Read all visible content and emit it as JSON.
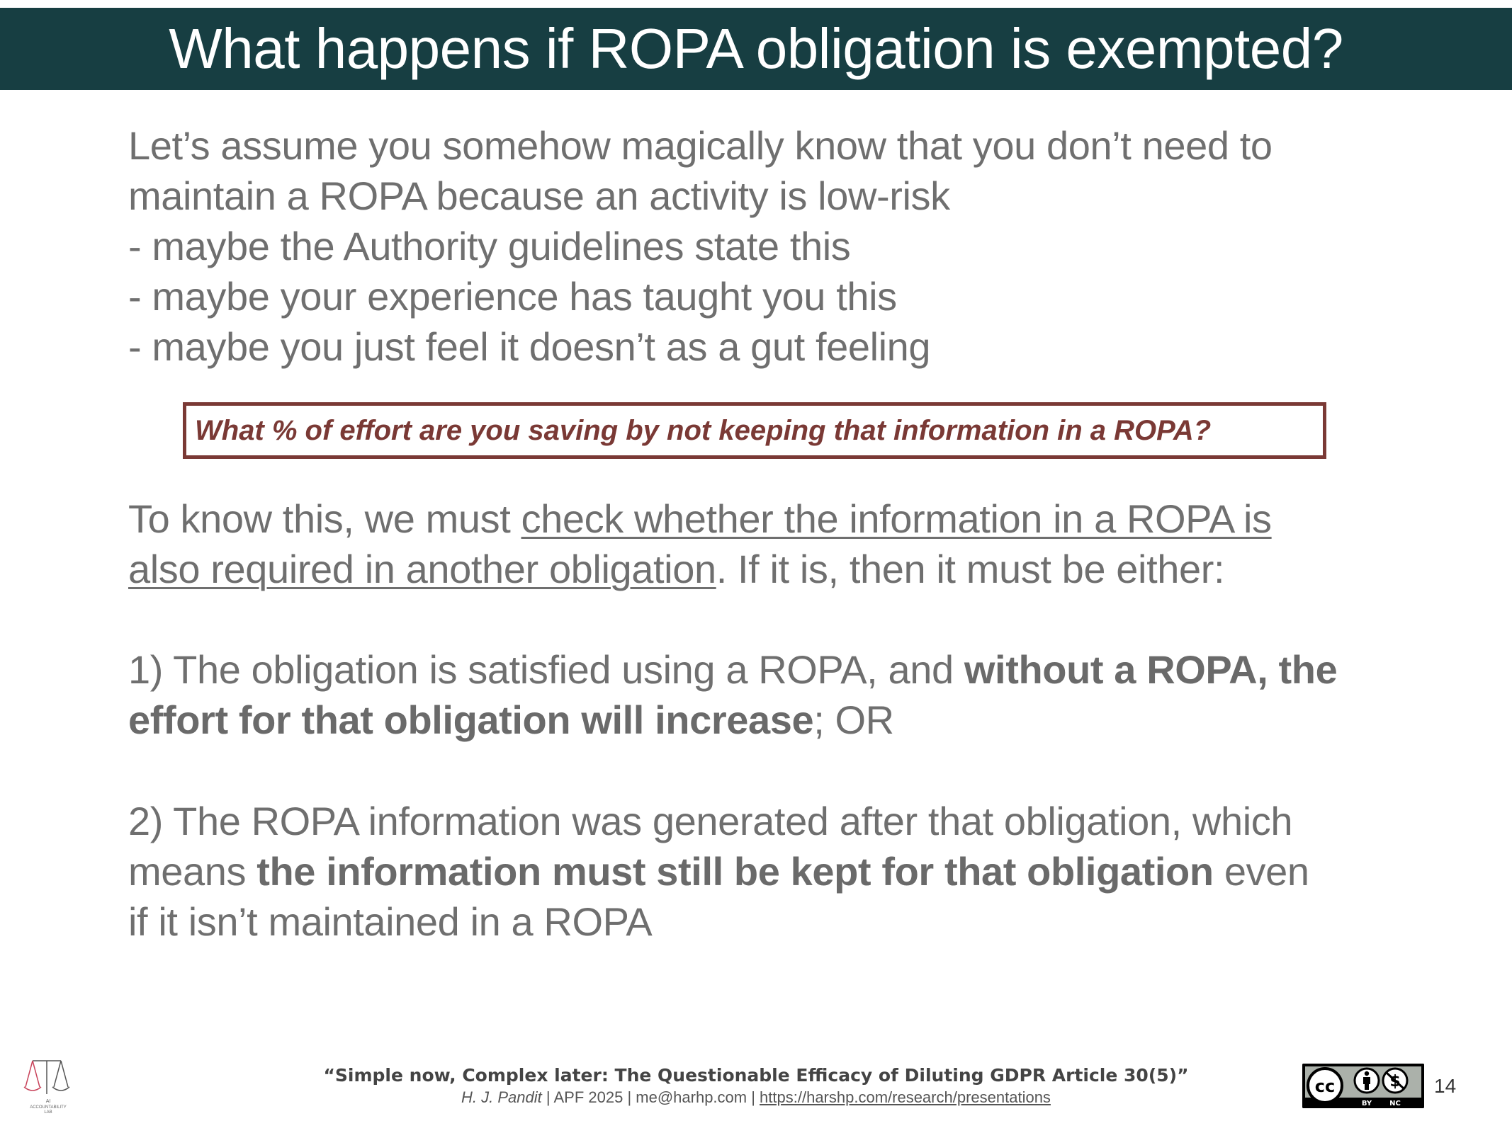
{
  "slide": {
    "title": "What happens if ROPA obligation is exempted?",
    "intro": {
      "line1": "Let’s assume you somehow magically know that you don’t need to",
      "line2": "maintain a ROPA because an activity is low-risk",
      "bullet1": "- maybe the Authority guidelines state this",
      "bullet2": "- maybe your experience has taught you this",
      "bullet3": "- maybe you just feel it doesn’t as a gut feeling"
    },
    "question": "What % of effort are you saving by not keeping that information in a ROPA?",
    "know": {
      "prefix": "To know this, we must ",
      "underline1": "check whether the information in a ROPA is",
      "underline2": "also required in another obligation",
      "suffix": ". If it is, then it must be either:"
    },
    "option1": {
      "lead": "1) The obligation is satisfied using a ROPA, and ",
      "bold1": "without a ROPA, the",
      "bold2": "effort for that obligation will increase",
      "tail": "; OR"
    },
    "option2": {
      "line1": "2) The ROPA information was generated after that obligation, which",
      "lead": "means ",
      "bold": "the information must still be kept for that obligation",
      "tail": " even",
      "line3": "if it isn’t maintained in a ROPA"
    }
  },
  "footer": {
    "paper_title": "“Simple now, Complex later: The Questionable Efficacy of Diluting GDPR Article 30(5)”",
    "author": "H. J. Pandit",
    "venue_contact": " | APF 2025 | me@harhp.com | ",
    "url": "https://harshp.com/research/presentations",
    "logo_text_1": "AI",
    "logo_text_2": "ACCOUNTABILITY",
    "logo_text_3": "LAB",
    "license_cc": "cc",
    "license_by": "BY",
    "license_nc": "NC",
    "page_number": "14"
  },
  "colors": {
    "title_bar": "#173e42",
    "body_text": "#6f6f6f",
    "accent_red": "#7a3935"
  },
  "icons": [
    "scales-logo-icon",
    "creative-commons-icon",
    "attribution-icon",
    "non-commercial-icon"
  ]
}
